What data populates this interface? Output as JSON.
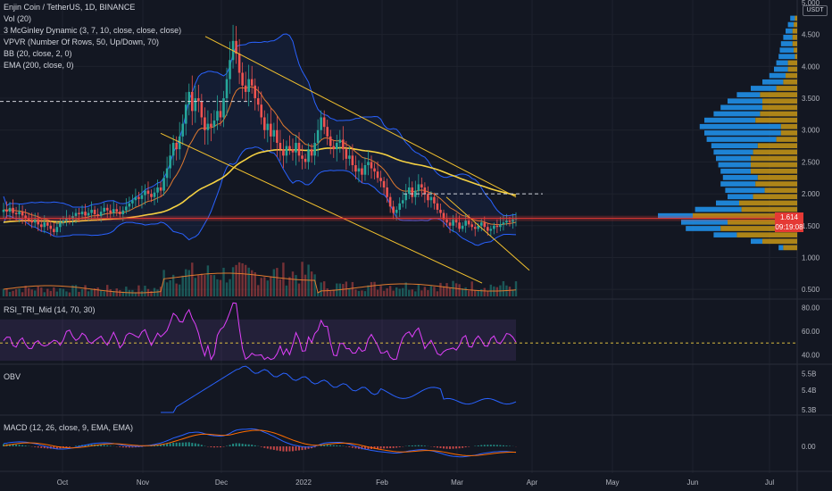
{
  "legend": {
    "symbol": "Enjin Coin / TetherUS, 1D, BINANCE",
    "indicators": [
      "Vol (20)",
      "3 McGinley Dynamic (3, 7, 10, close, close, close)",
      "VPVR (Number Of Rows, 50, Up/Down, 70)",
      "BB (20, close, 2, 0)",
      "EMA (200, close, 0)"
    ]
  },
  "currency_badge": "USDT",
  "last_price": "1.614",
  "countdown": "09:19:08",
  "panes": {
    "rsi_label": "RSI_TRI_Mid (14, 70, 30)",
    "obv_label": "OBV",
    "macd_label": "MACD (12, 26, close, 9, EMA, EMA)"
  },
  "colors": {
    "background": "#131722",
    "up": "#26a69a",
    "down": "#ef5350",
    "bb": "#2962ff",
    "ema200": "#f5d142",
    "mcginley": "#e07a2f",
    "trendline": "#f2c12e",
    "rsi": "#e040fb",
    "obv": "#2962ff",
    "macd": "#2962ff",
    "signal": "#ff6d00",
    "price_line": "#e53935",
    "vpvr_up": "#2196f3",
    "vpvr_down": "#d4a017"
  },
  "chart_data": {
    "type": "candlestick",
    "x_tick_labels": [
      "Oct",
      "Nov",
      "Dec",
      "2022",
      "Feb",
      "Mar",
      "Apr",
      "May",
      "Jun",
      "Jul"
    ],
    "price_axis": {
      "ticks": [
        "5.000",
        "4.500",
        "4.000",
        "3.500",
        "3.000",
        "2.500",
        "2.000",
        "1.500",
        "1.000",
        "0.500"
      ],
      "ylim": [
        0.4,
        5.0
      ]
    },
    "rsi_axis": {
      "ticks": [
        "80.00",
        "60.00",
        "40.00"
      ],
      "ylim": [
        30,
        90
      ],
      "band": [
        30,
        70
      ],
      "mid": 50
    },
    "obv_axis": {
      "ticks": [
        "5.5B",
        "5.4B",
        "5.3B"
      ],
      "ylim": [
        5.27,
        5.52
      ]
    },
    "macd_axis": {
      "ticks": [
        "0.00"
      ],
      "ylim": [
        -0.35,
        0.45
      ]
    },
    "close": [
      1.75,
      1.72,
      1.78,
      1.7,
      1.68,
      1.72,
      1.66,
      1.62,
      1.58,
      1.55,
      1.6,
      1.52,
      1.48,
      1.55,
      1.5,
      1.45,
      1.4,
      1.48,
      1.55,
      1.58,
      1.62,
      1.6,
      1.65,
      1.7,
      1.68,
      1.72,
      1.66,
      1.7,
      1.75,
      1.68,
      1.65,
      1.72,
      1.78,
      1.74,
      1.7,
      1.76,
      1.72,
      1.68,
      1.74,
      1.8,
      1.85,
      1.9,
      1.95,
      1.92,
      1.98,
      2.05,
      2.0,
      1.95,
      2.02,
      2.1,
      2.05,
      2.25,
      2.4,
      2.6,
      2.8,
      2.7,
      2.9,
      3.1,
      3.4,
      3.6,
      3.3,
      3.5,
      3.45,
      3.2,
      3.0,
      3.1,
      3.05,
      3.15,
      3.3,
      3.2,
      3.5,
      3.8,
      4.1,
      4.4,
      4.2,
      3.9,
      3.7,
      3.6,
      3.8,
      3.7,
      3.5,
      3.4,
      3.2,
      3.0,
      3.1,
      2.9,
      3.0,
      2.8,
      2.7,
      2.6,
      2.75,
      2.7,
      2.65,
      2.8,
      2.6,
      2.55,
      2.5,
      2.7,
      2.6,
      2.8,
      3.0,
      3.2,
      3.05,
      2.9,
      2.75,
      2.7,
      2.8,
      2.85,
      2.7,
      2.55,
      2.6,
      2.45,
      2.35,
      2.4,
      2.3,
      2.45,
      2.5,
      2.4,
      2.35,
      2.25,
      2.2,
      2.1,
      1.95,
      1.8,
      1.7,
      1.75,
      1.85,
      1.9,
      2.0,
      2.1,
      1.95,
      2.05,
      2.15,
      2.1,
      2.0,
      1.9,
      1.95,
      1.85,
      1.75,
      1.7,
      1.6,
      1.55,
      1.5,
      1.6,
      1.55,
      1.45,
      1.5,
      1.58,
      1.52,
      1.48,
      1.45,
      1.5,
      1.55,
      1.48,
      1.42,
      1.45,
      1.5,
      1.48,
      1.52,
      1.55,
      1.58,
      1.56,
      1.6,
      1.614
    ],
    "volume_note": "relative bars",
    "vpvr_note": "volume profile histogram",
    "last_price": 1.614
  }
}
